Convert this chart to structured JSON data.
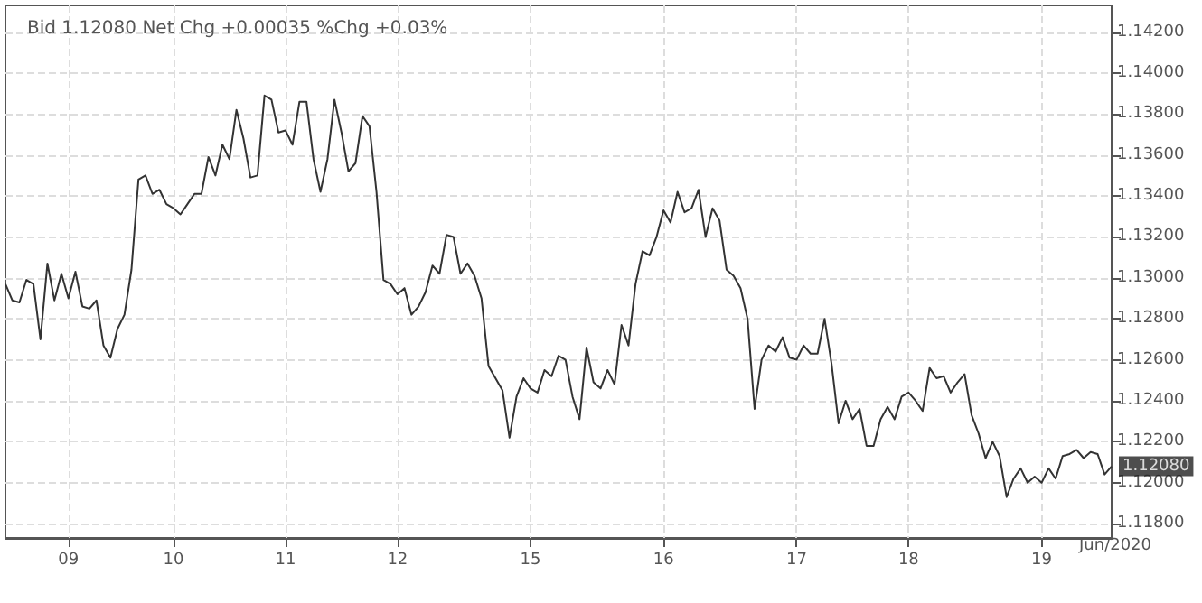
{
  "chart_data": {
    "type": "line",
    "title": "Bid 1.12080 Net Chg +0.00035 %Chg +0.03%",
    "xlabel": "Jun/2020",
    "annotations": [
      "1.12080"
    ],
    "categories": [
      null,
      null,
      null,
      null,
      null,
      null,
      null,
      null,
      null,
      "09",
      null,
      null,
      null,
      null,
      null,
      null,
      null,
      null,
      null,
      null,
      null,
      null,
      null,
      null,
      "10",
      null,
      null,
      null,
      null,
      null,
      null,
      null,
      null,
      null,
      null,
      null,
      null,
      null,
      null,
      null,
      "11",
      null,
      null,
      null,
      null,
      null,
      null,
      null,
      null,
      null,
      null,
      null,
      null,
      null,
      null,
      null,
      "12",
      null,
      null,
      null,
      null,
      null,
      null,
      null,
      null,
      null,
      null,
      null,
      null,
      null,
      null,
      null,
      null,
      null,
      null,
      "15",
      null,
      null,
      null,
      null,
      null,
      null,
      null,
      null,
      null,
      null,
      null,
      null,
      null,
      null,
      null,
      null,
      null,
      null,
      "16",
      null,
      null,
      null,
      null,
      null,
      null,
      null,
      null,
      null,
      null,
      null,
      null,
      null,
      null,
      null,
      null,
      null,
      null,
      "17",
      null,
      null,
      null,
      null,
      null,
      null,
      null,
      null,
      null,
      null,
      null,
      null,
      null,
      null,
      null,
      "18",
      null,
      null,
      null,
      null,
      null,
      null,
      null,
      null,
      null,
      null,
      null,
      null,
      null,
      null,
      null,
      null,
      null,
      null,
      "19",
      null,
      null,
      null,
      null,
      null,
      null,
      null,
      null,
      null,
      null
    ],
    "ylim": [
      1.1173,
      1.1433
    ],
    "yticks": [
      {
        "value": 1.118,
        "label": "1.11800"
      },
      {
        "value": 1.12,
        "label": "1.12000"
      },
      {
        "value": 1.122,
        "label": "1.12200"
      },
      {
        "value": 1.124,
        "label": "1.12400"
      },
      {
        "value": 1.126,
        "label": "1.12600"
      },
      {
        "value": 1.128,
        "label": "1.12800"
      },
      {
        "value": 1.13,
        "label": "1.13000"
      },
      {
        "value": 1.132,
        "label": "1.13200"
      },
      {
        "value": 1.134,
        "label": "1.13400"
      },
      {
        "value": 1.136,
        "label": "1.13600"
      },
      {
        "value": 1.138,
        "label": "1.13800"
      },
      {
        "value": 1.14,
        "label": "1.14000"
      },
      {
        "value": 1.142,
        "label": "1.14200"
      }
    ],
    "grid": true,
    "marker": "none",
    "line_style": "solid",
    "series": [
      {
        "color": "#333333",
        "values": [
          1.1297,
          1.1289,
          1.1288,
          1.1299,
          1.1297,
          1.127,
          1.1307,
          1.1289,
          1.1302,
          1.129,
          1.1303,
          1.1286,
          1.1285,
          1.1289,
          1.1267,
          1.1261,
          1.1275,
          1.1282,
          1.1304,
          1.1348,
          1.135,
          1.1341,
          1.1343,
          1.1336,
          1.1334,
          1.1331,
          1.1336,
          1.1341,
          1.1341,
          1.1359,
          1.135,
          1.1365,
          1.1358,
          1.1382,
          1.1368,
          1.1349,
          1.135,
          1.1389,
          1.1387,
          1.1371,
          1.1372,
          1.1365,
          1.1386,
          1.1386,
          1.1358,
          1.1342,
          1.1358,
          1.1387,
          1.1371,
          1.1352,
          1.1356,
          1.1379,
          1.1374,
          1.1342,
          1.1299,
          1.1297,
          1.1292,
          1.1295,
          1.1282,
          1.1286,
          1.1293,
          1.1306,
          1.1302,
          1.1321,
          1.132,
          1.1302,
          1.1307,
          1.1301,
          1.129,
          1.1257,
          1.1251,
          1.1245,
          1.1222,
          1.1242,
          1.1251,
          1.1246,
          1.1244,
          1.1255,
          1.1252,
          1.1262,
          1.126,
          1.1242,
          1.1231,
          1.1266,
          1.1249,
          1.1246,
          1.1255,
          1.1248,
          1.1277,
          1.1267,
          1.1297,
          1.1313,
          1.1311,
          1.132,
          1.1333,
          1.1327,
          1.1342,
          1.1332,
          1.1334,
          1.1343,
          1.132,
          1.1334,
          1.1328,
          1.1304,
          1.1301,
          1.1295,
          1.128,
          1.1236,
          1.126,
          1.1267,
          1.1264,
          1.1271,
          1.1261,
          1.126,
          1.1267,
          1.1263,
          1.1263,
          1.128,
          1.1258,
          1.1229,
          1.124,
          1.1231,
          1.1236,
          1.1218,
          1.1218,
          1.1231,
          1.1237,
          1.1231,
          1.1242,
          1.1244,
          1.124,
          1.1235,
          1.1256,
          1.1251,
          1.1252,
          1.1244,
          1.1249,
          1.1253,
          1.1233,
          1.1224,
          1.1212,
          1.122,
          1.1213,
          1.1193,
          1.1202,
          1.1207,
          1.12,
          1.1203,
          1.12,
          1.1207,
          1.1202,
          1.1213,
          1.1214,
          1.1216,
          1.1212,
          1.1215,
          1.1214,
          1.1204,
          1.1208
        ]
      }
    ]
  }
}
